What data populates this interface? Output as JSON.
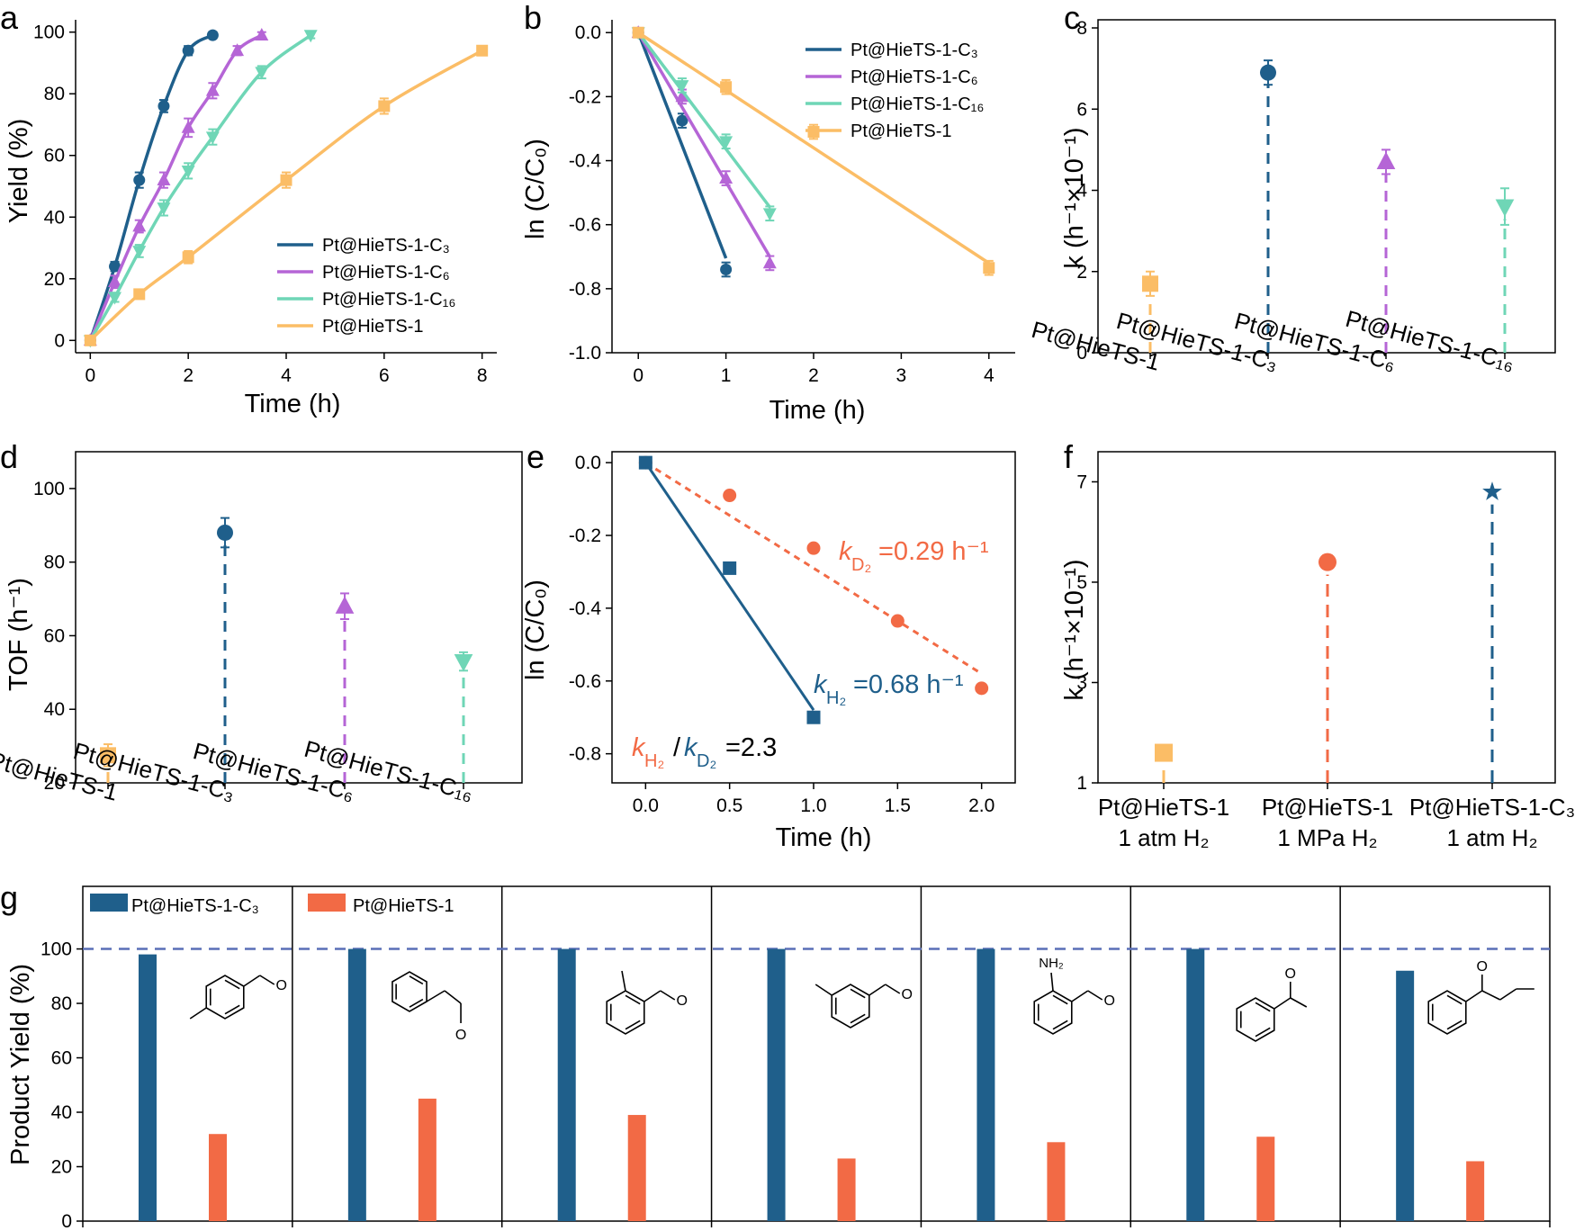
{
  "colors": {
    "c3": "#1f5f8b",
    "c6": "#b565d6",
    "c16": "#6fd6b6",
    "base": "#fbbd66",
    "d2": "#f26a45",
    "navy": "#1f5f8b",
    "dash": "#5a6fb7"
  },
  "chart_data": [
    {
      "id": "a",
      "type": "line",
      "letter": "a",
      "xlabel": "Time (h)",
      "ylabel": "Yield (%)",
      "xlim": [
        -0.3,
        8.3
      ],
      "ylim": [
        -4,
        104
      ],
      "xticks": [
        "0",
        "2",
        "4",
        "6",
        "8"
      ],
      "yticks": [
        "0",
        "20",
        "40",
        "60",
        "80",
        "100"
      ],
      "legend": [
        "Pt@HieTS-1-C₃",
        "Pt@HieTS-1-C₆",
        "Pt@HieTS-1-C₁₆",
        "Pt@HieTS-1"
      ],
      "series": [
        {
          "name": "Pt@HieTS-1-C₃",
          "color": "c3",
          "marker": "circle",
          "x": [
            0,
            0.5,
            1,
            1.5,
            2,
            2.5
          ],
          "y": [
            0,
            24,
            52,
            76,
            94,
            99
          ],
          "err": [
            1,
            1.5,
            2.5,
            2,
            1.5,
            1
          ]
        },
        {
          "name": "Pt@HieTS-1-C₆",
          "color": "c6",
          "marker": "triangle",
          "x": [
            0,
            0.5,
            1,
            1.5,
            2,
            2.5,
            3,
            3.5
          ],
          "y": [
            0,
            19,
            37,
            52,
            69,
            81,
            94,
            99
          ],
          "err": [
            1,
            2,
            2,
            2.5,
            3,
            2.5,
            1.5,
            1
          ]
        },
        {
          "name": "Pt@HieTS-1-C₁₆",
          "color": "c16",
          "marker": "tridown",
          "x": [
            0,
            0.5,
            1,
            1.5,
            2,
            2.5,
            3.5,
            4.5
          ],
          "y": [
            0,
            14,
            29,
            43,
            55,
            66,
            87,
            99
          ],
          "err": [
            1,
            1.5,
            2,
            2.5,
            2.5,
            2.5,
            2,
            1
          ]
        },
        {
          "name": "Pt@HieTS-1",
          "color": "base",
          "marker": "square",
          "x": [
            0,
            1,
            2,
            4,
            6,
            8
          ],
          "y": [
            0,
            15,
            27,
            52,
            76,
            94
          ],
          "err": [
            1,
            1.5,
            2,
            2.5,
            2.5,
            1.5
          ]
        }
      ]
    },
    {
      "id": "b",
      "type": "line",
      "letter": "b",
      "xlabel": "Time (h)",
      "ylabel": "ln (C/C₀)",
      "xlim": [
        -0.3,
        4.3
      ],
      "ylim": [
        -1.0,
        0.04
      ],
      "xticks": [
        "0",
        "1",
        "2",
        "3",
        "4"
      ],
      "yticks": [
        "0.0",
        "-0.2",
        "-0.4",
        "-0.6",
        "-0.8",
        "-1.0"
      ],
      "legend": [
        "Pt@HieTS-1-C₃",
        "Pt@HieTS-1-C₆",
        "Pt@HieTS-1-C₁₆",
        "Pt@HieTS-1"
      ],
      "series": [
        {
          "name": "Pt@HieTS-1-C₃",
          "color": "c3",
          "marker": "circle",
          "x": [
            0,
            0.5,
            1
          ],
          "y": [
            0,
            -0.275,
            -0.74
          ],
          "fit": [
            [
              0,
              0
            ],
            [
              1,
              -0.705
            ]
          ]
        },
        {
          "name": "Pt@HieTS-1-C₆",
          "color": "c6",
          "marker": "triangle",
          "x": [
            0,
            0.5,
            1,
            1.5
          ],
          "y": [
            0,
            -0.2,
            -0.455,
            -0.72
          ],
          "fit": [
            [
              0,
              0
            ],
            [
              1.5,
              -0.7
            ]
          ]
        },
        {
          "name": "Pt@HieTS-1-C₁₆",
          "color": "c16",
          "marker": "tridown",
          "x": [
            0,
            0.5,
            1,
            1.5
          ],
          "y": [
            0,
            -0.165,
            -0.34,
            -0.565
          ],
          "fit": [
            [
              0,
              0
            ],
            [
              1.5,
              -0.545
            ]
          ]
        },
        {
          "name": "Pt@HieTS-1",
          "color": "base",
          "marker": "square",
          "x": [
            0,
            1,
            2,
            4
          ],
          "y": [
            0,
            -0.17,
            -0.31,
            -0.735
          ],
          "fit": [
            [
              0,
              0
            ],
            [
              4,
              -0.72
            ]
          ]
        }
      ]
    },
    {
      "id": "c",
      "type": "scatter",
      "letter": "c",
      "ylabel": "k (h⁻¹×10⁻¹)",
      "ylim": [
        0,
        8.2
      ],
      "yticks": [
        "0",
        "2",
        "4",
        "6",
        "8"
      ],
      "categories": [
        "Pt@HieTS-1",
        "Pt@HieTS-1-C₃",
        "Pt@HieTS-1-C₆",
        "Pt@HieTS-1-C₁₆"
      ],
      "values": [
        1.7,
        6.9,
        4.7,
        3.6
      ],
      "err": [
        0.3,
        0.3,
        0.3,
        0.45
      ]
    },
    {
      "id": "d",
      "type": "scatter",
      "letter": "d",
      "ylabel": "TOF (h⁻¹)",
      "ylim": [
        20,
        110
      ],
      "yticks": [
        "20",
        "40",
        "60",
        "80",
        "100"
      ],
      "categories": [
        "Pt@HieTS-1",
        "Pt@HieTS-1-C₃",
        "Pt@HieTS-1-C₆",
        "Pt@HieTS-1-C₁₆"
      ],
      "values": [
        27.5,
        88,
        68,
        53
      ],
      "err": [
        3,
        4,
        3.5,
        2.5
      ]
    },
    {
      "id": "e",
      "type": "scatter",
      "letter": "e",
      "xlabel": "Time (h)",
      "ylabel": "ln (C/C₀)",
      "xlim": [
        -0.2,
        2.2
      ],
      "ylim": [
        -0.88,
        0.03
      ],
      "xticks": [
        "0.0",
        "0.5",
        "1.0",
        "1.5",
        "2.0"
      ],
      "yticks": [
        "0.0",
        "-0.2",
        "-0.4",
        "-0.6",
        "-0.8"
      ],
      "series": [
        {
          "name": "D2",
          "color": "d2",
          "marker": "circle",
          "x": [
            0,
            0.5,
            1,
            1.5,
            2
          ],
          "y": [
            0,
            -0.09,
            -0.235,
            -0.435,
            -0.62
          ],
          "fit": [
            [
              0,
              0
            ],
            [
              2,
              -0.58
            ]
          ]
        },
        {
          "name": "H2",
          "color": "navy",
          "marker": "square",
          "x": [
            0,
            0.5,
            1
          ],
          "y": [
            0,
            -0.29,
            -0.7
          ],
          "fit": [
            [
              0,
              0
            ],
            [
              1,
              -0.68
            ]
          ]
        }
      ],
      "annotations": {
        "kd2": "=0.29 h⁻¹",
        "kh2": "=0.68 h⁻¹",
        "ratio": "=2.3"
      }
    },
    {
      "id": "f",
      "type": "scatter",
      "letter": "f",
      "ylabel": "k (h⁻¹×10⁻¹)",
      "ylim": [
        1,
        7.6
      ],
      "yticks": [
        "1",
        "3",
        "5",
        "7"
      ],
      "categories": [
        [
          "Pt@HieTS-1",
          "1 atm H₂"
        ],
        [
          "Pt@HieTS-1",
          "1 MPa H₂"
        ],
        [
          "Pt@HieTS-1-C₃",
          "1 atm H₂"
        ]
      ],
      "values": [
        1.6,
        5.4,
        6.8
      ]
    },
    {
      "id": "g",
      "type": "bar",
      "letter": "g",
      "ylabel": "Product Yield (%)",
      "ylim": [
        0,
        123
      ],
      "yticks": [
        "0",
        "20",
        "40",
        "60",
        "80",
        "100"
      ],
      "legend": [
        "Pt@HieTS-1-C₃",
        "Pt@HieTS-1"
      ],
      "series": [
        {
          "name": "Pt@HieTS-1-C₃",
          "color": "c3",
          "values": [
            98,
            100,
            100,
            100,
            100,
            100,
            92
          ]
        },
        {
          "name": "Pt@HieTS-1",
          "color": "d2",
          "values": [
            32,
            45,
            39,
            23,
            29,
            31,
            22
          ]
        }
      ],
      "reference_line": 100,
      "substrate_labels": [
        "NH₂"
      ]
    }
  ]
}
